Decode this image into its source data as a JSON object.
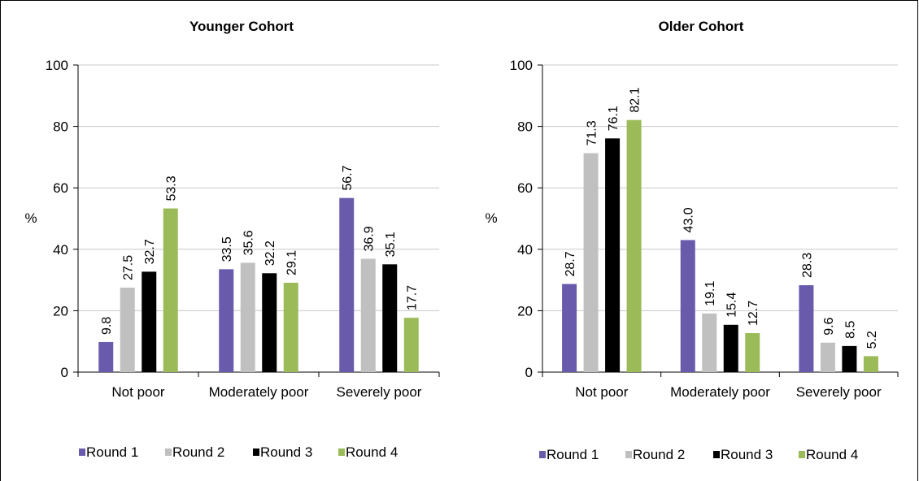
{
  "chart_data": [
    {
      "type": "bar",
      "title": "Younger Cohort",
      "ylabel": "%",
      "xlabel": "",
      "ylim": [
        0,
        100
      ],
      "yticks": [
        0,
        20,
        40,
        60,
        80,
        100
      ],
      "categories": [
        "Not poor",
        "Moderately poor",
        "Severely poor"
      ],
      "series": [
        {
          "name": "Round 1",
          "color": "#6a5aab",
          "values": [
            9.8,
            33.5,
            56.7
          ]
        },
        {
          "name": "Round 2",
          "color": "#c0c0c0",
          "values": [
            27.5,
            35.6,
            36.9
          ]
        },
        {
          "name": "Round 3",
          "color": "#000000",
          "values": [
            32.7,
            32.2,
            35.1
          ]
        },
        {
          "name": "Round 4",
          "color": "#9bbb59",
          "values": [
            53.3,
            29.1,
            17.7
          ]
        }
      ],
      "value_labels": [
        [
          "9.8",
          "33.5",
          "56.7"
        ],
        [
          "27.5",
          "35.6",
          "36.9"
        ],
        [
          "32.7",
          "32.2",
          "35.1"
        ],
        [
          "53.3",
          "29.1",
          "17.7"
        ]
      ],
      "grid": true,
      "legend": "bottom"
    },
    {
      "type": "bar",
      "title": "Older Cohort",
      "ylabel": "%",
      "xlabel": "",
      "ylim": [
        0,
        100
      ],
      "yticks": [
        0,
        20,
        40,
        60,
        80,
        100
      ],
      "categories": [
        "Not poor",
        "Moderately poor",
        "Severely   poor"
      ],
      "series": [
        {
          "name": "Round 1",
          "color": "#6a5aab",
          "values": [
            28.7,
            43.0,
            28.3
          ]
        },
        {
          "name": "Round 2",
          "color": "#c0c0c0",
          "values": [
            71.3,
            19.1,
            9.6
          ]
        },
        {
          "name": "Round 3",
          "color": "#000000",
          "values": [
            76.1,
            15.4,
            8.5
          ]
        },
        {
          "name": "Round 4",
          "color": "#9bbb59",
          "values": [
            82.1,
            12.7,
            5.2
          ]
        }
      ],
      "value_labels": [
        [
          "28.7",
          "43.0",
          "28.3"
        ],
        [
          "71.3",
          "19.1",
          "9.6"
        ],
        [
          "76.1",
          "15.4",
          "8.5"
        ],
        [
          "82.1",
          "12.7",
          "5.2"
        ]
      ],
      "grid": true,
      "legend": "bottom"
    }
  ]
}
